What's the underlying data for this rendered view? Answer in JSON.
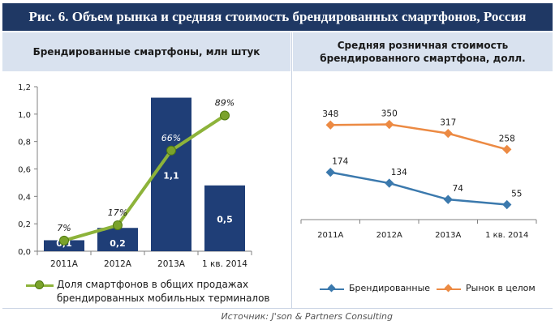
{
  "title": "Рис. 6. Объем рынка и средняя стоимость брендированных смартфонов, Россия",
  "left_panel": {
    "header": "Брендированные смартфоны, млн штук",
    "legend_label": "Доля смартфонов в общих продажах брендированных мобильных терминалов"
  },
  "right_panel": {
    "header": "Средняя розничная стоимость брендированного смартфона, долл."
  },
  "source": "Источник: J'son & Partners Consulting",
  "colors": {
    "bar": "#1f3e77",
    "share_line": "#8db33a",
    "branded": "#3b79ad",
    "market": "#ec8a43"
  },
  "chart_data": [
    {
      "type": "bar",
      "categories": [
        "2011A",
        "2012A",
        "2013A",
        "1 кв. 2014"
      ],
      "values": [
        0.1,
        0.2,
        1.1,
        0.5
      ],
      "value_labels": [
        "0,1",
        "0,2",
        "1,1",
        "0,5"
      ],
      "bar_heights": [
        0.08,
        0.17,
        1.12,
        0.48
      ],
      "ylim": [
        0,
        1.2
      ],
      "yticks": [
        "0,0",
        "0,2",
        "0,4",
        "0,6",
        "0,8",
        "1,0",
        "1,2"
      ],
      "secondary_line": {
        "name": "Доля смартфонов в общих продажах брендированных мобильных терминалов",
        "values": [
          7,
          17,
          66,
          89
        ],
        "labels": [
          "7%",
          "17%",
          "66%",
          "89%"
        ],
        "scale_max": 0.89,
        "scale_top": 0.99,
        "unit": "%"
      },
      "grid": false
    },
    {
      "type": "line",
      "categories": [
        "2011A",
        "2012A",
        "2013A",
        "1 кв. 2014"
      ],
      "series": [
        {
          "name": "Брендированные",
          "values": [
            174,
            134,
            74,
            55
          ],
          "labels": [
            "174",
            "134",
            "74",
            "55"
          ]
        },
        {
          "name": "Рынок в целом",
          "values": [
            348,
            350,
            317,
            258
          ],
          "labels": [
            "348",
            "350",
            "317",
            "258"
          ]
        }
      ],
      "ylim": [
        0,
        450
      ],
      "legend": "bottom"
    }
  ]
}
